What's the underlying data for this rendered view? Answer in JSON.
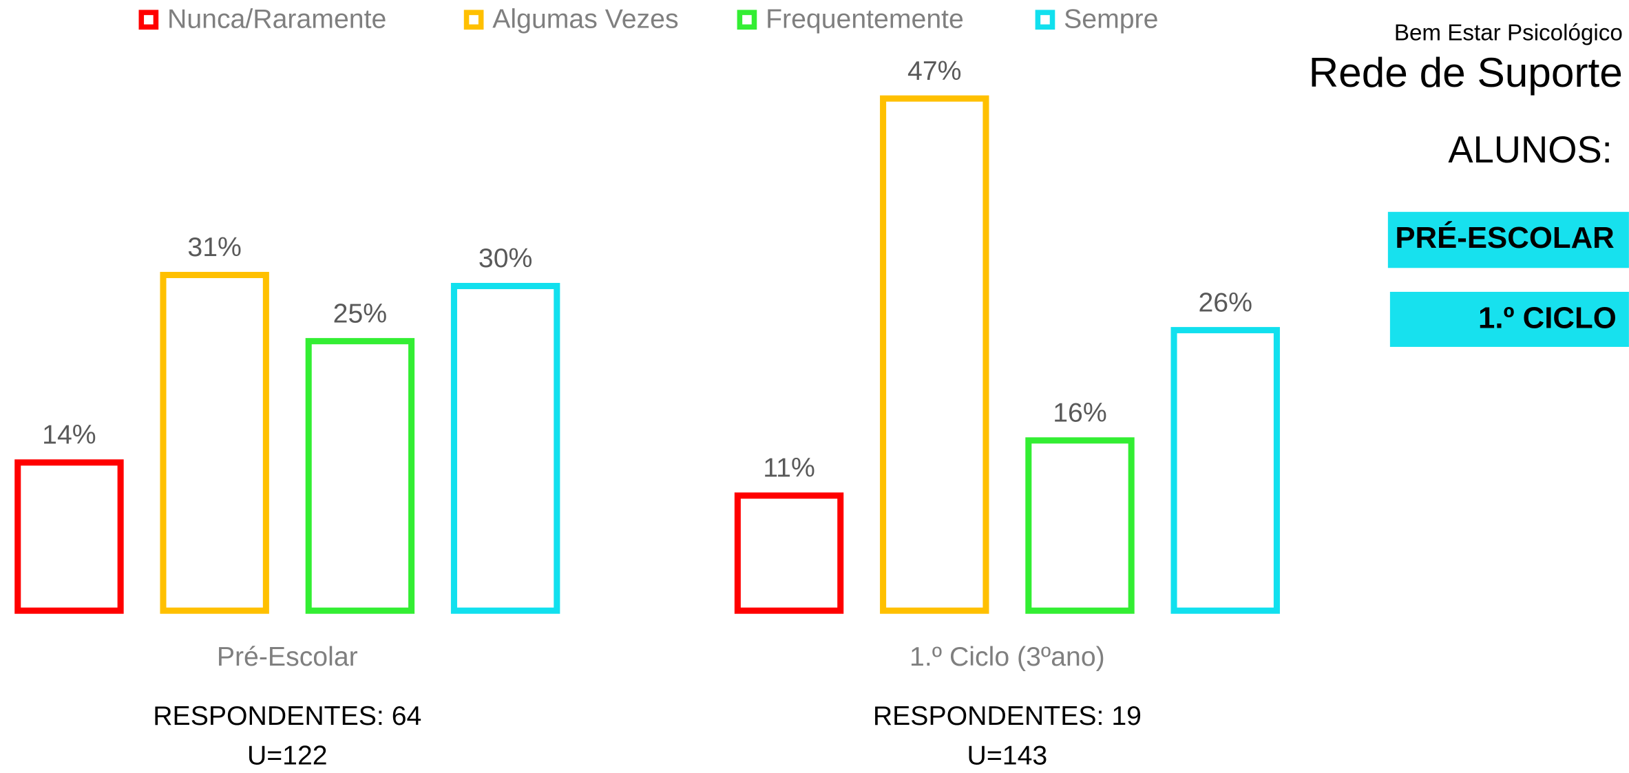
{
  "chart_data": {
    "type": "bar",
    "categories": [
      "Pré-Escolar",
      "1.º Ciclo (3ºano)"
    ],
    "series": [
      {
        "name": "Nunca/Raramente",
        "color": "#ff0000",
        "values": [
          14,
          11
        ],
        "value_labels": [
          "14%",
          "11%"
        ]
      },
      {
        "name": "Algumas Vezes",
        "color": "#ffc000",
        "values": [
          31,
          47
        ],
        "value_labels": [
          "31%",
          "47%"
        ]
      },
      {
        "name": "Frequentemente",
        "color": "#33ee33",
        "values": [
          25,
          16
        ],
        "value_labels": [
          "25%",
          "16%"
        ]
      },
      {
        "name": "Sempre",
        "color": "#11e0ee",
        "values": [
          30,
          26
        ],
        "value_labels": [
          "30%",
          "26%"
        ]
      }
    ],
    "ylim": [
      0,
      50
    ],
    "legend": "top",
    "annotations": [
      [
        "RESPONDENTES: 64",
        "U=122"
      ],
      [
        "RESPONDENTES: 19",
        "U=143"
      ]
    ]
  },
  "header": {
    "subtitle": "Bem Estar Psicológico",
    "title": "Rede de Suporte"
  },
  "sidebar": {
    "label": "ALUNOS:",
    "buttons": [
      "PRÉ-ESCOLAR",
      "1.º CICLO"
    ]
  }
}
